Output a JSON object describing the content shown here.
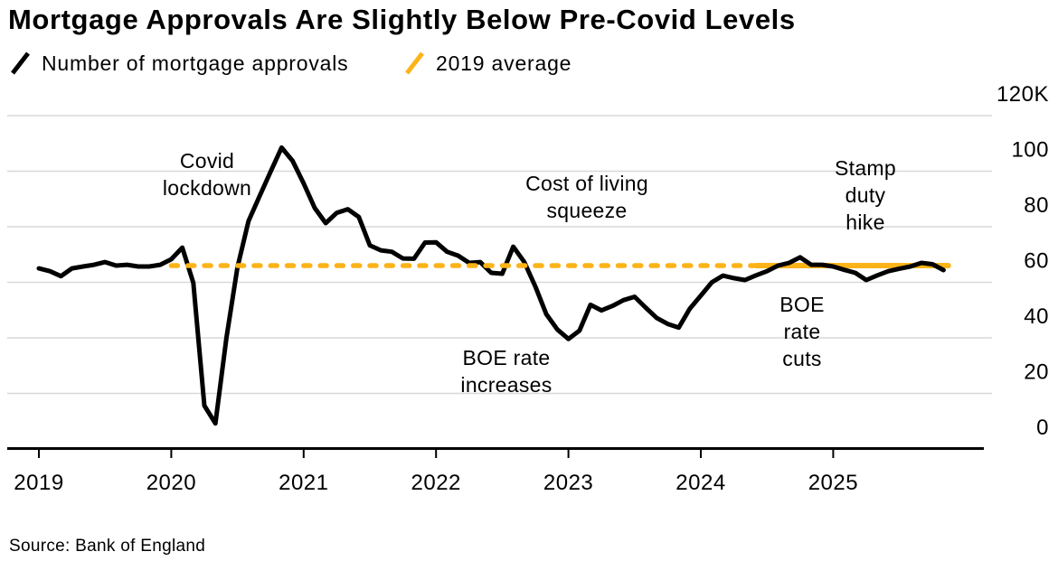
{
  "title": "Mortgage Approvals Are Slightly Below Pre-Covid Levels",
  "source": "Source: Bank of England",
  "legend": {
    "items": [
      {
        "label": "Number of mortgage approvals",
        "color": "#000000",
        "icon": "line-swatch-icon"
      },
      {
        "label": "2019 average",
        "color": "#fbb318",
        "icon": "line-swatch-icon"
      }
    ]
  },
  "colors": {
    "series": "#000000",
    "average": "#fbb318",
    "gridline": "#d8d8d8",
    "axis": "#000000",
    "text": "#000000",
    "background": "#ffffff"
  },
  "chart_data": {
    "type": "line",
    "title": "Mortgage Approvals Are Slightly Below Pre-Covid Levels",
    "ylabel": "",
    "xlabel": "",
    "unit": "thousands of mortgage approvals per month",
    "ylim": [
      0,
      120
    ],
    "grid": "horizontal",
    "legend_position": "top-left",
    "x_ticks": [
      "2019",
      "2020",
      "2021",
      "2022",
      "2023",
      "2024",
      "2025"
    ],
    "y_ticks": [
      {
        "value": 0,
        "label": "0"
      },
      {
        "value": 20,
        "label": "20"
      },
      {
        "value": 40,
        "label": "40"
      },
      {
        "value": 60,
        "label": "60"
      },
      {
        "value": 80,
        "label": "80"
      },
      {
        "value": 100,
        "label": "100"
      },
      {
        "value": 120,
        "label": "120K"
      }
    ],
    "series": [
      {
        "name": "Number of mortgage approvals",
        "start_year": 2019,
        "start_month": 1,
        "frequency": "monthly",
        "values": [
          65.0,
          64.0,
          62.2,
          65.0,
          65.7,
          66.3,
          67.3,
          66.0,
          66.3,
          65.7,
          65.7,
          66.3,
          68.3,
          72.5,
          59.8,
          15.6,
          9.2,
          40.0,
          65.4,
          82.0,
          91.0,
          99.8,
          108.5,
          103.7,
          95.6,
          86.8,
          81.3,
          85.0,
          86.3,
          83.5,
          73.3,
          71.5,
          71.0,
          68.6,
          68.5,
          74.3,
          74.4,
          71.0,
          69.6,
          67.0,
          67.3,
          63.4,
          63.1,
          72.8,
          67.3,
          58.5,
          48.5,
          43.0,
          39.6,
          42.6,
          51.9,
          49.9,
          51.5,
          53.6,
          54.8,
          50.9,
          47.2,
          45.0,
          43.7,
          50.5,
          55.2,
          60.0,
          62.4,
          61.5,
          60.8,
          62.5,
          64.0,
          66.0,
          67.0,
          69.0,
          66.3,
          66.3,
          65.7,
          64.5,
          63.4,
          60.8,
          62.5,
          64.0,
          64.9,
          65.7,
          67.0,
          66.5,
          64.4
        ]
      }
    ],
    "average_line": {
      "name": "2019 average",
      "value": 66,
      "dashed_span_years": [
        2020.0,
        2024.42
      ],
      "solid_span_years": [
        2024.42,
        2025.87
      ]
    },
    "annotations": [
      {
        "id": "covid-lockdown",
        "lines": [
          "Covid",
          "lockdown"
        ]
      },
      {
        "id": "cost-of-living-squeeze",
        "lines": [
          "Cost of living",
          "squeeze"
        ]
      },
      {
        "id": "boe-rate-increases",
        "lines": [
          "BOE rate",
          "increases"
        ]
      },
      {
        "id": "boe-rate-cuts",
        "lines": [
          "BOE",
          "rate",
          "cuts"
        ]
      },
      {
        "id": "stamp-duty-hike",
        "lines": [
          "Stamp",
          "duty",
          "hike"
        ]
      }
    ]
  }
}
